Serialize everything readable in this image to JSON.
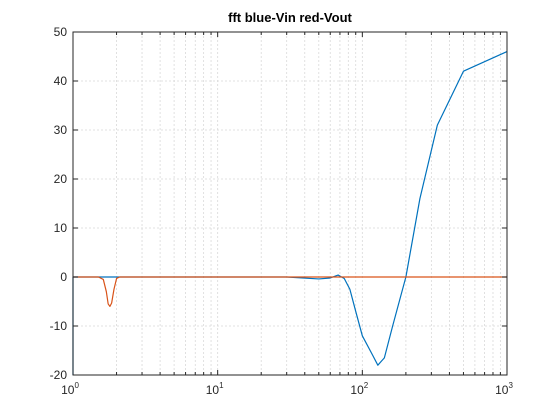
{
  "chart_data": {
    "type": "line",
    "title": "fft blue-Vin red-Vout",
    "xscale": "log",
    "xlim": [
      1,
      1000
    ],
    "ylim": [
      -20,
      50
    ],
    "grid": true,
    "xticks": [
      {
        "base": "10",
        "exp": "0"
      },
      {
        "base": "10",
        "exp": "1"
      },
      {
        "base": "10",
        "exp": "2"
      },
      {
        "base": "10",
        "exp": "3"
      }
    ],
    "yticks": [
      "-20",
      "-10",
      "0",
      "10",
      "20",
      "30",
      "40",
      "50"
    ],
    "series": [
      {
        "color": "#0072BD",
        "x": [
          1,
          1,
          1.5,
          1.7,
          1.85,
          1.95,
          2.05,
          3,
          10,
          30,
          50,
          60,
          68,
          75,
          82,
          90,
          100,
          118,
          128,
          142,
          162,
          200,
          250,
          330,
          500,
          1000
        ],
        "y": [
          -20,
          0,
          0,
          0,
          0,
          0,
          0,
          0,
          0,
          0,
          -0.4,
          -0.2,
          0.4,
          -0.3,
          -2.5,
          -7,
          -12,
          -16,
          -18,
          -16.5,
          -10,
          0,
          16,
          31,
          42,
          46
        ]
      },
      {
        "color": "#D95319",
        "x": [
          1,
          1.5,
          1.62,
          1.7,
          1.75,
          1.8,
          1.85,
          1.92,
          2.0,
          2.1,
          3,
          10,
          100,
          1000
        ],
        "y": [
          0,
          0,
          -0.5,
          -3,
          -5.5,
          -6,
          -5.3,
          -2.5,
          -0.3,
          0,
          0,
          0,
          0,
          0
        ]
      }
    ]
  }
}
